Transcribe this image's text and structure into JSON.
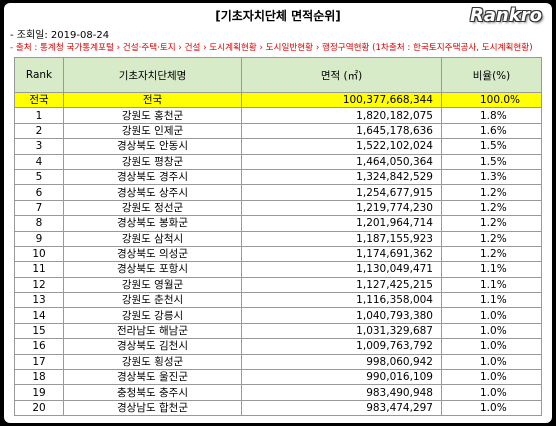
{
  "header": {
    "title": "[기초자치단체 면적순위]",
    "logo": "Rankro",
    "date": "- 조회일: 2019-08-24",
    "source": "- 출처 : 통계청 국가통계포털 › 건설·주택·토지 › 건설 › 도시계획현황 › 도시일반현황 › 행정구역현황 (1차출처 : 한국토지주택공사, 도시계획현황)"
  },
  "table": {
    "columns": [
      "Rank",
      "기초자치단체명",
      "면적 (㎡)",
      "비율(%)"
    ],
    "rows": [
      [
        "전국",
        "전국",
        "100,377,668,344",
        "100.0%"
      ],
      [
        "1",
        "강원도 홍천군",
        "1,820,182,075",
        "1.8%"
      ],
      [
        "2",
        "강원도 인제군",
        "1,645,178,636",
        "1.6%"
      ],
      [
        "3",
        "경상북도 안동시",
        "1,522,102,024",
        "1.5%"
      ],
      [
        "4",
        "강원도 평창군",
        "1,464,050,364",
        "1.5%"
      ],
      [
        "5",
        "경상북도 경주시",
        "1,324,842,529",
        "1.3%"
      ],
      [
        "6",
        "경상북도 상주시",
        "1,254,677,915",
        "1.2%"
      ],
      [
        "7",
        "강원도 정선군",
        "1,219,774,230",
        "1.2%"
      ],
      [
        "8",
        "경상북도 봉화군",
        "1,201,964,714",
        "1.2%"
      ],
      [
        "9",
        "강원도 삼척시",
        "1,187,155,923",
        "1.2%"
      ],
      [
        "10",
        "경상북도 의성군",
        "1,174,691,362",
        "1.2%"
      ],
      [
        "11",
        "경상북도 포항시",
        "1,130,049,471",
        "1.1%"
      ],
      [
        "12",
        "강원도 영월군",
        "1,127,425,215",
        "1.1%"
      ],
      [
        "13",
        "강원도 춘천시",
        "1,116,358,004",
        "1.1%"
      ],
      [
        "14",
        "강원도 강릉시",
        "1,040,793,380",
        "1.0%"
      ],
      [
        "15",
        "전라남도 해남군",
        "1,031,329,687",
        "1.0%"
      ],
      [
        "16",
        "경상북도 김천시",
        "1,009,763,792",
        "1.0%"
      ],
      [
        "17",
        "강원도 횡성군",
        "998,060,942",
        "1.0%"
      ],
      [
        "18",
        "경상북도 울진군",
        "990,016,109",
        "1.0%"
      ],
      [
        "19",
        "충청북도 충주시",
        "983,490,948",
        "1.0%"
      ],
      [
        "20",
        "경상남도 합천군",
        "983,474,297",
        "1.0%"
      ]
    ]
  }
}
